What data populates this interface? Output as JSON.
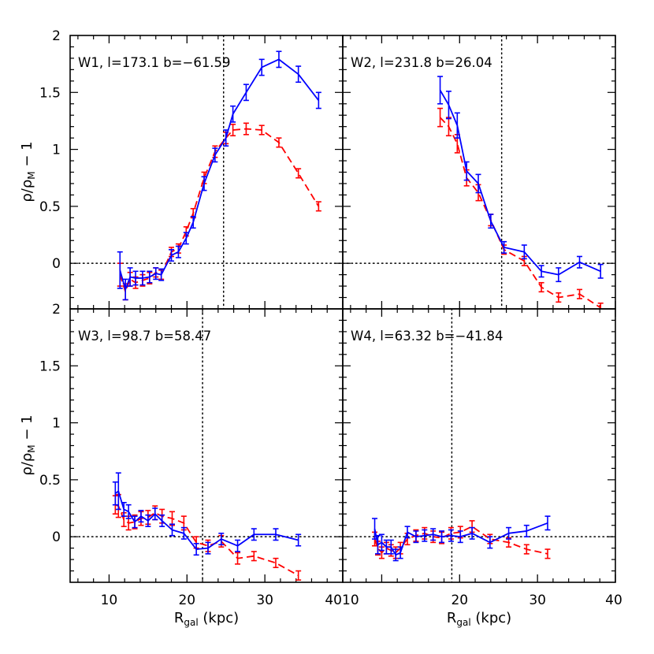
{
  "chart_data": {
    "type": "line",
    "layout": "2x2 panels, shared axes",
    "xlabel": {
      "main": "R",
      "sub": "gal",
      "tail": " (kpc)"
    },
    "ylabel": {
      "rho": "ρ",
      "slash": "/",
      "rho2": "ρ",
      "sub": "M",
      "tail": " − 1"
    },
    "xlim": [
      5,
      40
    ],
    "ylim": [
      -0.4,
      2
    ],
    "x_ticks": [
      "10",
      "20",
      "30",
      "40"
    ],
    "x_ticks_right_panel": [
      "10",
      "20",
      "30",
      "40"
    ],
    "x_ticks_right_panel_first": "40",
    "y_ticks_top": [
      "2",
      "1.5",
      "1",
      "0.5",
      "0"
    ],
    "y_ticks_bottom": [
      "2",
      "1.5",
      "1",
      "0.5",
      "0"
    ],
    "y_tick_values": [
      2,
      1.5,
      1,
      0.5,
      0
    ],
    "colors": {
      "series_a": "#0000ff",
      "series_b": "#ff0000",
      "reference": "#000000"
    },
    "panels": [
      {
        "label": "W1, l=173.1  b=−61.59",
        "vline": 24.7,
        "hline": 0,
        "series": [
          {
            "style": "solid",
            "color": "#0000ff",
            "x": [
              11.4,
              12.1,
              12.7,
              13.4,
              14.3,
              15.2,
              16.0,
              16.7,
              18.0,
              18.9,
              19.9,
              20.8,
              22.2,
              23.6,
              25.0,
              25.9,
              27.6,
              29.6,
              31.8,
              34.3,
              36.9
            ],
            "y": [
              -0.06,
              -0.23,
              -0.12,
              -0.13,
              -0.13,
              -0.12,
              -0.09,
              -0.1,
              0.07,
              0.1,
              0.22,
              0.36,
              0.7,
              0.95,
              1.1,
              1.31,
              1.5,
              1.72,
              1.79,
              1.66,
              1.43
            ],
            "err": [
              0.16,
              0.09,
              0.08,
              0.06,
              0.06,
              0.05,
              0.05,
              0.05,
              0.05,
              0.05,
              0.05,
              0.05,
              0.06,
              0.06,
              0.07,
              0.07,
              0.07,
              0.07,
              0.07,
              0.07,
              0.07
            ]
          },
          {
            "style": "dashed",
            "color": "#ff0000",
            "x": [
              11.4,
              12.1,
              12.7,
              13.4,
              14.3,
              15.2,
              16.0,
              16.7,
              18.0,
              18.9,
              19.9,
              20.8,
              22.2,
              23.6,
              25.0,
              25.9,
              27.6,
              29.6,
              31.8,
              34.3,
              36.9
            ],
            "y": [
              -0.1,
              -0.25,
              -0.14,
              -0.17,
              -0.15,
              -0.13,
              -0.08,
              -0.1,
              0.1,
              0.13,
              0.28,
              0.44,
              0.75,
              0.98,
              1.1,
              1.17,
              1.18,
              1.17,
              1.06,
              0.79,
              0.5
            ],
            "err": [
              0.1,
              0.07,
              0.06,
              0.05,
              0.05,
              0.05,
              0.04,
              0.04,
              0.04,
              0.04,
              0.04,
              0.04,
              0.05,
              0.05,
              0.05,
              0.05,
              0.05,
              0.04,
              0.04,
              0.04,
              0.04
            ]
          }
        ]
      },
      {
        "label": "W2, l=231.8  b=26.04",
        "vline": 25.4,
        "hline": 0,
        "series": [
          {
            "style": "solid",
            "color": "#0000ff",
            "x": [
              17.5,
              18.6,
              19.7,
              20.9,
              22.4,
              24.0,
              25.7,
              28.3,
              30.5,
              32.7,
              35.4,
              38.1
            ],
            "y": [
              1.52,
              1.39,
              1.21,
              0.81,
              0.7,
              0.37,
              0.14,
              0.1,
              -0.07,
              -0.1,
              0.01,
              -0.07
            ],
            "err": [
              0.12,
              0.12,
              0.11,
              0.08,
              0.08,
              0.06,
              0.05,
              0.06,
              0.05,
              0.06,
              0.05,
              0.06
            ]
          },
          {
            "style": "dashed",
            "color": "#ff0000",
            "x": [
              17.5,
              18.6,
              19.7,
              20.9,
              22.4,
              24.0,
              25.7,
              28.3,
              30.5,
              32.7,
              35.4,
              38.1
            ],
            "y": [
              1.28,
              1.2,
              1.05,
              0.75,
              0.62,
              0.38,
              0.12,
              0.02,
              -0.21,
              -0.3,
              -0.27,
              -0.39
            ],
            "err": [
              0.08,
              0.08,
              0.08,
              0.07,
              0.07,
              0.05,
              0.04,
              0.04,
              0.04,
              0.04,
              0.04,
              0.04
            ]
          }
        ]
      },
      {
        "label": "W3, l=98.7  b=58.47",
        "vline": 22.0,
        "hline": 0,
        "series": [
          {
            "style": "solid",
            "color": "#0000ff",
            "x": [
              10.8,
              11.2,
              11.9,
              12.5,
              13.3,
              14.1,
              15.0,
              15.9,
              16.8,
              18.1,
              19.6,
              21.2,
              22.7,
              24.4,
              26.5,
              28.6,
              31.4,
              34.3
            ],
            "y": [
              0.38,
              0.4,
              0.24,
              0.22,
              0.13,
              0.18,
              0.14,
              0.2,
              0.14,
              0.06,
              0.03,
              -0.11,
              -0.1,
              -0.02,
              -0.08,
              0.02,
              0.02,
              -0.03
            ],
            "err": [
              0.1,
              0.16,
              0.06,
              0.06,
              0.05,
              0.05,
              0.05,
              0.05,
              0.05,
              0.05,
              0.05,
              0.05,
              0.05,
              0.05,
              0.05,
              0.05,
              0.05,
              0.05
            ]
          },
          {
            "style": "dashed",
            "color": "#ff0000",
            "x": [
              10.8,
              11.2,
              11.9,
              12.5,
              13.3,
              14.1,
              15.0,
              15.9,
              16.8,
              18.1,
              19.6,
              21.2,
              22.7,
              24.4,
              26.5,
              28.6,
              31.4,
              34.3
            ],
            "y": [
              0.28,
              0.27,
              0.15,
              0.12,
              0.13,
              0.16,
              0.17,
              0.21,
              0.18,
              0.16,
              0.12,
              -0.05,
              -0.08,
              -0.04,
              -0.19,
              -0.17,
              -0.23,
              -0.34
            ],
            "err": [
              0.08,
              0.1,
              0.06,
              0.06,
              0.06,
              0.06,
              0.06,
              0.06,
              0.06,
              0.06,
              0.06,
              0.05,
              0.05,
              0.05,
              0.05,
              0.04,
              0.04,
              0.04
            ]
          }
        ]
      },
      {
        "label": "W4, l=63.32  b=−41.84",
        "vline": 19.0,
        "hline": 0,
        "series": [
          {
            "style": "solid",
            "color": "#0000ff",
            "x": [
              9.1,
              9.5,
              10.0,
              10.6,
              11.2,
              11.8,
              12.4,
              13.3,
              14.4,
              15.5,
              16.6,
              17.7,
              18.9,
              20.1,
              21.6,
              23.9,
              26.3,
              28.6,
              31.3
            ],
            "y": [
              0.07,
              -0.07,
              -0.05,
              -0.09,
              -0.09,
              -0.16,
              -0.14,
              0.04,
              0.0,
              0.01,
              0.02,
              0.0,
              0.01,
              0.0,
              0.03,
              -0.05,
              0.03,
              0.05,
              0.12
            ],
            "err": [
              0.09,
              0.08,
              0.07,
              0.06,
              0.06,
              0.05,
              0.05,
              0.05,
              0.05,
              0.05,
              0.05,
              0.05,
              0.05,
              0.05,
              0.05,
              0.05,
              0.05,
              0.05,
              0.06
            ]
          },
          {
            "style": "dashed",
            "color": "#ff0000",
            "x": [
              9.1,
              9.5,
              10.0,
              10.6,
              11.2,
              11.8,
              12.4,
              13.3,
              14.4,
              15.5,
              16.6,
              17.7,
              18.9,
              20.1,
              21.6,
              23.9,
              26.3,
              28.6,
              31.3
            ],
            "y": [
              -0.02,
              -0.1,
              -0.14,
              -0.1,
              -0.12,
              -0.14,
              -0.1,
              -0.02,
              0.01,
              0.03,
              0.0,
              -0.01,
              0.03,
              0.04,
              0.09,
              -0.02,
              -0.05,
              -0.11,
              -0.15
            ],
            "err": [
              0.06,
              0.06,
              0.05,
              0.05,
              0.05,
              0.05,
              0.05,
              0.05,
              0.05,
              0.05,
              0.05,
              0.05,
              0.05,
              0.05,
              0.05,
              0.04,
              0.04,
              0.04,
              0.04
            ]
          }
        ]
      }
    ]
  }
}
